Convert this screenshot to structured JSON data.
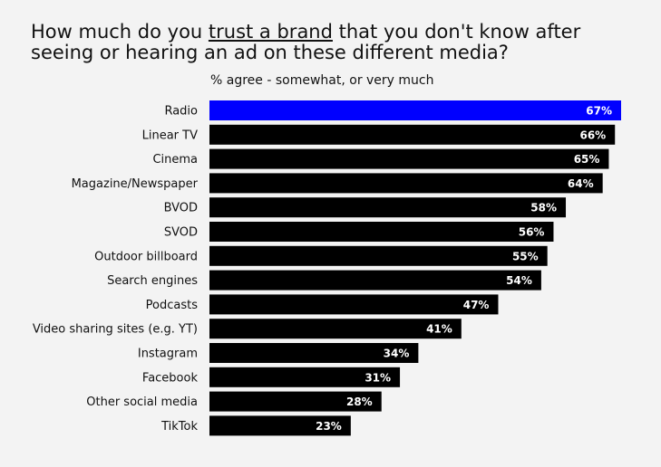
{
  "title": {
    "part1": "How much do you ",
    "part2": "trust a brand",
    "part3": " that you don't know after seeing or hearing an ad on these different media?"
  },
  "subtitle": "% agree - somewhat, or very much",
  "colors": {
    "highlight": "#0000ff",
    "bar": "#000000",
    "background": "#f3f3f3"
  },
  "chart_data": {
    "type": "bar",
    "orientation": "horizontal",
    "title": "How much do you trust a brand that you don't know after seeing or hearing an ad on these different media?",
    "subtitle": "% agree - somewhat, or very much",
    "categories": [
      "Radio",
      "Linear TV",
      "Cinema",
      "Magazine/Newspaper",
      "BVOD",
      "SVOD",
      "Outdoor billboard",
      "Search engines",
      "Podcasts",
      "Video sharing sites (e.g. YT)",
      "Instagram",
      "Facebook",
      "Other social media",
      "TikTok"
    ],
    "values": [
      67,
      66,
      65,
      64,
      58,
      56,
      55,
      54,
      47,
      41,
      34,
      31,
      28,
      23
    ],
    "value_labels": [
      "67%",
      "66%",
      "65%",
      "64%",
      "58%",
      "56%",
      "55%",
      "54%",
      "47%",
      "41%",
      "34%",
      "31%",
      "28%",
      "23%"
    ],
    "highlighted_category": "Radio",
    "xlabel": "",
    "ylabel": "",
    "xlim": [
      0,
      67
    ],
    "grid": false,
    "legend": "none"
  }
}
